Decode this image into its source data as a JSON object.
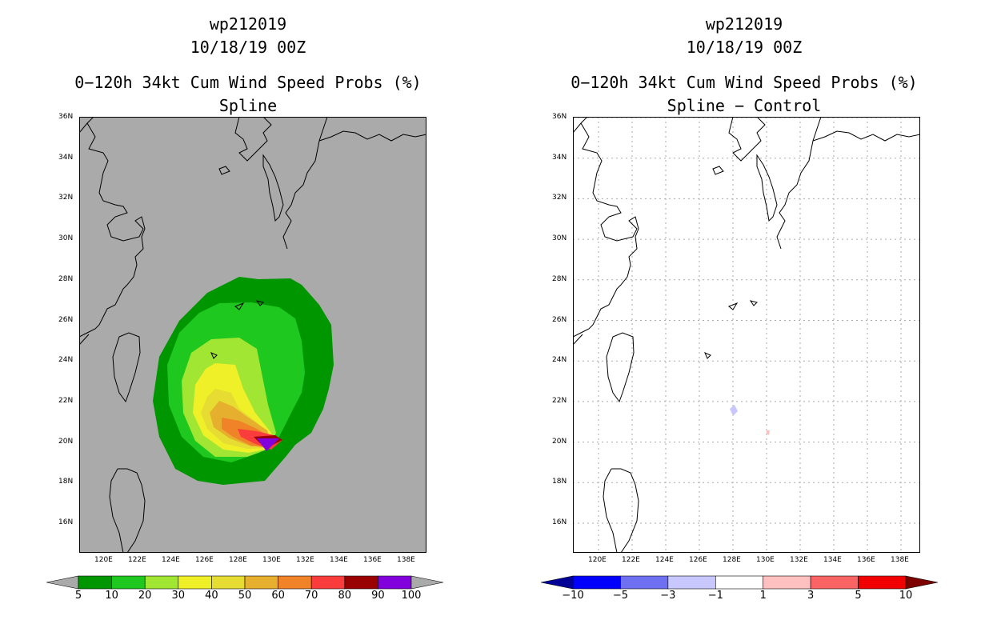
{
  "left": {
    "storm_id": "wp212019",
    "datetime": "10/18/19 00Z",
    "product": "0−120h 34kt Cum Wind Speed Probs (%)",
    "subtitle": "Spline",
    "lat_labels": [
      "36N",
      "34N",
      "32N",
      "30N",
      "28N",
      "26N",
      "24N",
      "22N",
      "20N",
      "18N",
      "16N"
    ],
    "lon_labels": [
      "120E",
      "122E",
      "124E",
      "126E",
      "128E",
      "130E",
      "132E",
      "134E",
      "136E",
      "138E"
    ],
    "colorbar": {
      "labels": [
        "5",
        "10",
        "20",
        "30",
        "40",
        "50",
        "60",
        "70",
        "80",
        "90",
        "100"
      ],
      "colors": [
        "#009600",
        "#1ec81e",
        "#a0e632",
        "#f0f028",
        "#e6dc32",
        "#e6af2d",
        "#f08228",
        "#fa3c3c",
        "#9b0000",
        "#8200dc"
      ]
    }
  },
  "right": {
    "storm_id": "wp212019",
    "datetime": "10/18/19 00Z",
    "product": "0−120h 34kt Cum Wind Speed Probs (%)",
    "subtitle": "Spline − Control",
    "lat_labels": [
      "36N",
      "34N",
      "32N",
      "30N",
      "28N",
      "26N",
      "24N",
      "22N",
      "20N",
      "18N",
      "16N"
    ],
    "lon_labels": [
      "120E",
      "122E",
      "124E",
      "126E",
      "128E",
      "130E",
      "132E",
      "134E",
      "136E",
      "138E"
    ],
    "colorbar": {
      "labels": [
        "−10",
        "−5",
        "−3",
        "−1",
        "1",
        "3",
        "5",
        "10"
      ],
      "colors": [
        "#0000ff",
        "#6f6ff2",
        "#c8c8ff",
        "#ffffff",
        "#ffc0c0",
        "#fa6464",
        "#f00000"
      ]
    }
  },
  "colors": {
    "background_gray": "#aaaaaa",
    "low_end": "#000096",
    "high_end": "#7d0000"
  }
}
